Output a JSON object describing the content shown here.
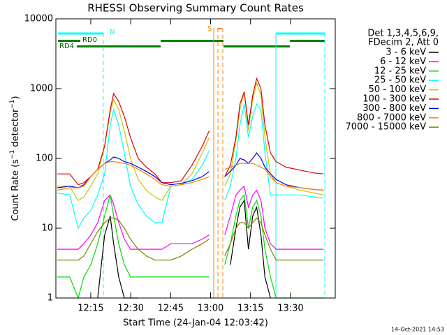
{
  "chart_data": {
    "type": "line",
    "title": "RHESSI Observing Summary Count Rates",
    "xlabel": "Start Time (24-Jan-04 12:03:42)",
    "ylabel_parts": [
      "Count Rate (s",
      "−1",
      " detector",
      "−1",
      ")"
    ],
    "legend_header": [
      "Det 1,3,4,5,6,9,",
      "FDecim 2, Att 0"
    ],
    "annotations": [
      "N",
      "RD0",
      "RD4",
      "S"
    ],
    "timestamp": "14-Oct-2021 14:53",
    "log_y": true,
    "xlim": [
      1.9,
      106.8
    ],
    "xticks": [
      {
        "value": 15,
        "label": "12:15"
      },
      {
        "value": 30,
        "label": "12:30"
      },
      {
        "value": 45,
        "label": "12:45"
      },
      {
        "value": 60,
        "label": "13:00"
      },
      {
        "value": 75,
        "label": "13:15"
      },
      {
        "value": 90,
        "label": "13:30"
      }
    ],
    "ylim": [
      1,
      10000
    ],
    "yticks": [
      1,
      10,
      100,
      1000,
      10000
    ],
    "x": [
      2.4,
      7.1,
      10.3,
      12.4,
      15,
      17.6,
      20.2,
      22.3,
      23.6,
      25.5,
      27.6,
      29.9,
      32.8,
      35.9,
      39.1,
      41.7,
      45.1,
      49.0,
      53.0,
      56.9,
      59.5,
      62.4,
      65.3,
      67.4,
      69.5,
      71.0,
      72.6,
      74.2,
      75.8,
      77.3,
      78.9,
      80.4,
      82.5,
      84.6,
      88.3,
      93.5,
      98.8,
      102.4
    ],
    "series": [
      {
        "name": "3 - 6 keV",
        "color": "#000000",
        "values": [
          null,
          null,
          null,
          null,
          null,
          1,
          8,
          15,
          6,
          2,
          1,
          1,
          1,
          null,
          null,
          null,
          null,
          null,
          null,
          null,
          null,
          null,
          null,
          3,
          10,
          20,
          25,
          5,
          15,
          20,
          8,
          2,
          1,
          null,
          null,
          null,
          null,
          null
        ]
      },
      {
        "name": "6 - 12 keV",
        "color": "#ff00ff",
        "values": [
          5,
          5,
          5,
          6,
          8,
          12,
          25,
          30,
          22,
          12,
          7,
          5,
          5,
          5,
          5,
          5,
          6,
          6,
          6,
          7,
          8,
          null,
          8,
          15,
          30,
          35,
          40,
          20,
          30,
          35,
          25,
          10,
          6,
          5,
          5,
          5,
          5,
          5
        ]
      },
      {
        "name": "12 - 25 keV",
        "color": "#00e000",
        "values": [
          2,
          2,
          1,
          2,
          3,
          6,
          15,
          30,
          15,
          6,
          3,
          2,
          2,
          2,
          2,
          2,
          2,
          2,
          2,
          2,
          2,
          null,
          3,
          6,
          15,
          25,
          30,
          10,
          20,
          25,
          15,
          5,
          2,
          1,
          1,
          1,
          1,
          1
        ]
      },
      {
        "name": "25 - 50 keV",
        "color": "#00ffff",
        "values": [
          32,
          30,
          10,
          14,
          18,
          30,
          60,
          300,
          500,
          300,
          120,
          40,
          22,
          15,
          12,
          12,
          40,
          42,
          50,
          80,
          130,
          null,
          25,
          40,
          100,
          300,
          600,
          200,
          400,
          600,
          500,
          120,
          30,
          30,
          30,
          30,
          28,
          27
        ]
      },
      {
        "name": "50 - 100 keV",
        "color": "#c8c800",
        "values": [
          40,
          40,
          25,
          28,
          40,
          60,
          150,
          450,
          700,
          500,
          250,
          100,
          50,
          35,
          28,
          25,
          40,
          42,
          60,
          120,
          200,
          null,
          40,
          60,
          180,
          500,
          900,
          250,
          700,
          1200,
          800,
          200,
          60,
          45,
          40,
          35,
          32,
          30
        ]
      },
      {
        "name": "100 - 300 keV",
        "color": "#e00000",
        "values": [
          60,
          60,
          42,
          45,
          55,
          70,
          150,
          500,
          850,
          650,
          400,
          200,
          100,
          75,
          60,
          45,
          45,
          48,
          80,
          150,
          250,
          null,
          55,
          80,
          200,
          600,
          900,
          300,
          800,
          1400,
          1000,
          300,
          120,
          90,
          75,
          68,
          62,
          60
        ]
      },
      {
        "name": "300 - 800 keV",
        "color": "#0000e0",
        "values": [
          38,
          40,
          38,
          42,
          55,
          70,
          85,
          95,
          105,
          100,
          90,
          85,
          75,
          65,
          55,
          45,
          42,
          44,
          48,
          55,
          65,
          null,
          55,
          65,
          80,
          100,
          95,
          85,
          100,
          120,
          100,
          75,
          60,
          50,
          42,
          38,
          36,
          35
        ]
      },
      {
        "name": "800 - 7000 keV",
        "color": "#ff8000",
        "values": [
          35,
          38,
          38,
          40,
          55,
          70,
          85,
          90,
          90,
          88,
          85,
          80,
          70,
          60,
          50,
          42,
          40,
          42,
          45,
          50,
          55,
          null,
          70,
          75,
          80,
          85,
          85,
          85,
          85,
          80,
          75,
          70,
          55,
          45,
          40,
          38,
          36,
          35
        ]
      },
      {
        "name": "7000 - 15000 keV",
        "color": "#808000",
        "values": [
          3.5,
          3.5,
          3.5,
          4,
          6,
          9,
          12,
          14,
          14,
          13,
          10,
          7,
          5,
          4,
          3.5,
          3.5,
          3.5,
          4,
          5,
          6,
          7,
          null,
          4,
          6,
          10,
          12,
          12,
          10,
          12,
          14,
          12,
          8,
          5,
          3.5,
          3.5,
          3.5,
          3.5,
          3.5
        ]
      }
    ]
  }
}
